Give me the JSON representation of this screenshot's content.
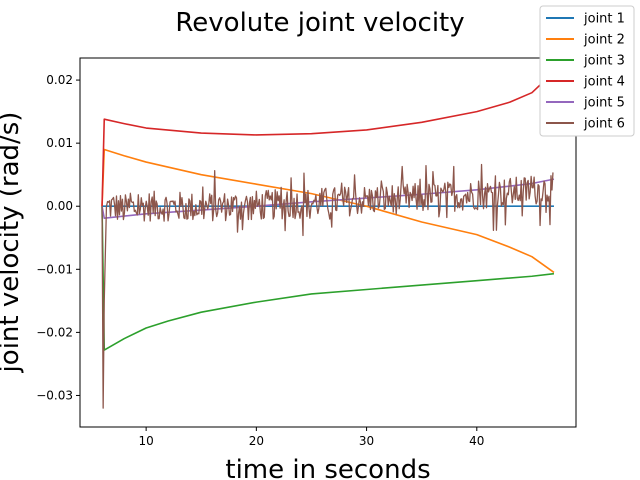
{
  "chart_data": {
    "type": "line",
    "title": "Revolute joint velocity",
    "xlabel": "time in seconds",
    "ylabel": "joint velocity (rad/s)",
    "xlim": [
      4.0,
      49.0
    ],
    "ylim": [
      -0.035,
      0.0235
    ],
    "xticks": [
      10,
      20,
      30,
      40
    ],
    "yticks": [
      -0.03,
      -0.02,
      -0.01,
      0.0,
      0.01,
      0.02
    ],
    "ytick_labels": [
      "−0.03",
      "−0.02",
      "−0.01",
      "0.00",
      "0.01",
      "0.02"
    ],
    "xtick_labels": [
      "10",
      "20",
      "30",
      "40"
    ],
    "grid": false,
    "legend_position": "top-right",
    "series": [
      {
        "name": "joint 1",
        "color": "#1f77b4",
        "x": [
          6.0,
          10,
          20,
          30,
          40,
          47
        ],
        "y": [
          0.0,
          0.0,
          0.0,
          0.0,
          0.0,
          0.0
        ]
      },
      {
        "name": "joint 2",
        "color": "#ff7f0e",
        "x": [
          6.0,
          6.2,
          8,
          10,
          15,
          20,
          25,
          30,
          35,
          40,
          43,
          45,
          47
        ],
        "y": [
          0.0,
          0.009,
          0.008,
          0.007,
          0.005,
          0.0035,
          0.002,
          0.0,
          -0.0025,
          -0.0045,
          -0.0065,
          -0.008,
          -0.0105
        ]
      },
      {
        "name": "joint 3",
        "color": "#2ca02c",
        "x": [
          6.0,
          6.2,
          8,
          10,
          12,
          15,
          20,
          25,
          30,
          35,
          40,
          45,
          47
        ],
        "y": [
          0.0,
          -0.0228,
          -0.021,
          -0.0193,
          -0.0182,
          -0.0168,
          -0.0152,
          -0.0139,
          -0.0132,
          -0.0125,
          -0.0118,
          -0.0111,
          -0.0107
        ]
      },
      {
        "name": "joint 4",
        "color": "#d62728",
        "x": [
          6.0,
          6.2,
          8,
          10,
          15,
          20,
          25,
          30,
          35,
          40,
          43,
          45,
          47
        ],
        "y": [
          0.0,
          0.0138,
          0.0131,
          0.0124,
          0.0116,
          0.0113,
          0.0115,
          0.0121,
          0.0133,
          0.015,
          0.0165,
          0.018,
          0.0213
        ]
      },
      {
        "name": "joint 5",
        "color": "#9467bd",
        "x": [
          6.0,
          6.2,
          10,
          15,
          20,
          25,
          30,
          35,
          40,
          45,
          47
        ],
        "y": [
          0.0,
          -0.0019,
          -0.0012,
          -0.0006,
          0.0,
          0.0007,
          0.0013,
          0.0019,
          0.0026,
          0.0036,
          0.0043
        ]
      },
      {
        "name": "joint 6",
        "color": "#8c564b",
        "x": [
          6.0,
          6.1,
          6.2,
          6.4,
          7,
          8,
          10,
          12,
          15,
          17,
          20,
          25,
          30,
          35,
          40,
          45,
          47
        ],
        "y": [
          0.0,
          -0.032,
          -0.015,
          0.0,
          0.0,
          -0.0005,
          0.0,
          0.0,
          -0.0002,
          0.0,
          0.0001,
          0.0005,
          0.001,
          0.0013,
          0.0018,
          0.0025,
          0.003
        ],
        "noise_amplitude": 0.003
      }
    ]
  }
}
